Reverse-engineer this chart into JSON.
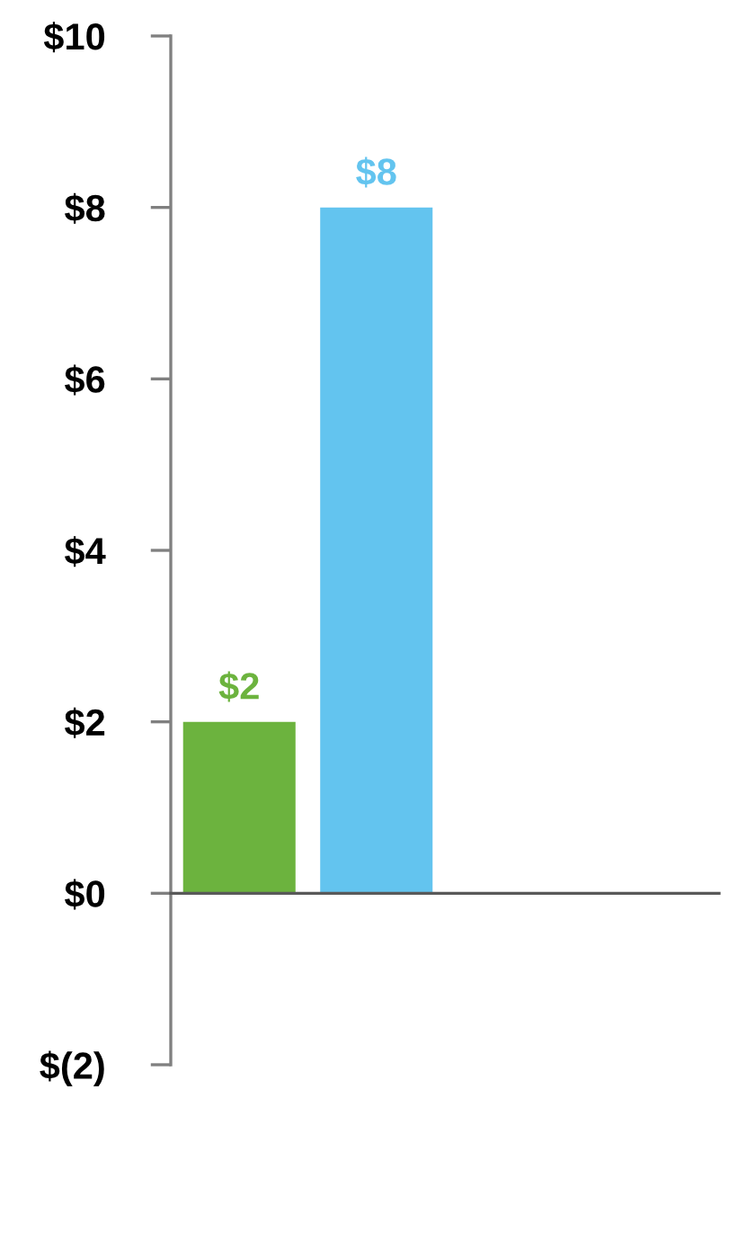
{
  "chart_data": {
    "type": "bar",
    "categories": [
      null,
      null,
      null,
      null
    ],
    "values": [
      2,
      8,
      null,
      null
    ],
    "colors": [
      "#6cb33e",
      "#63c4ef",
      "#63c4ef",
      "#63c4ef"
    ],
    "value_labels": [
      "$2",
      "$8",
      null,
      null
    ],
    "ylim": [
      -2,
      10
    ],
    "yticks": [
      {
        "value": -2,
        "label": "$(2)"
      },
      {
        "value": 0,
        "label": "$0"
      },
      {
        "value": 2,
        "label": "$2"
      },
      {
        "value": 4,
        "label": "$4"
      },
      {
        "value": 6,
        "label": "$6"
      },
      {
        "value": 8,
        "label": "$8"
      },
      {
        "value": 10,
        "label": "$10"
      }
    ],
    "tick_labels": "y"
  }
}
